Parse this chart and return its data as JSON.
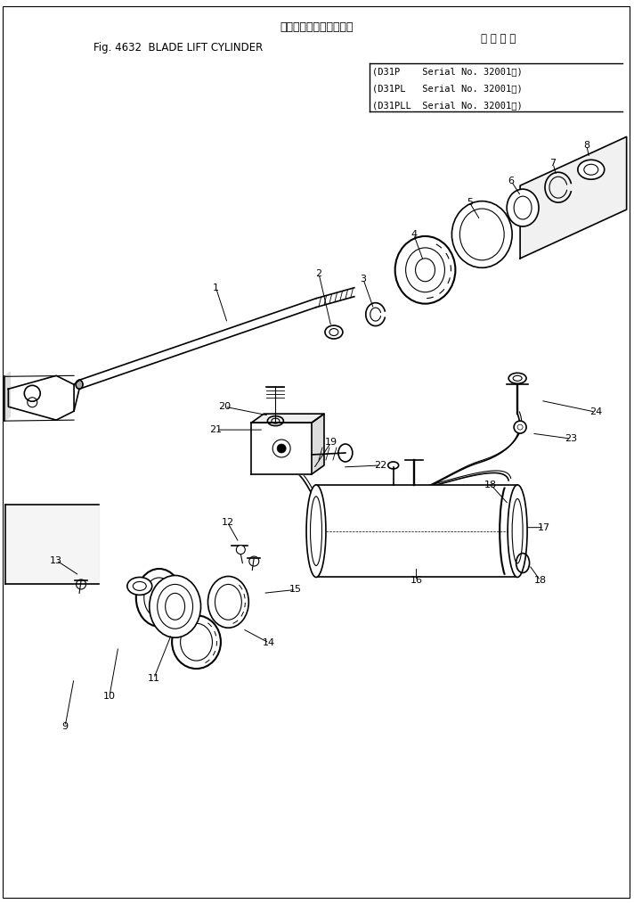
{
  "title_jp": "ブレードリフトシリンダ",
  "title_en": "Fig. 4632  BLADE LIFT CYLINDER",
  "serial_header": "適 用 号 機",
  "serial_line1": "(D31P    Serial No. 32001～)",
  "serial_line2": "(D31PL   Serial No. 32001～)",
  "serial_line3": "(D31PLL  Serial No. 32001～)",
  "bg_color": "#ffffff",
  "line_color": "#000000"
}
